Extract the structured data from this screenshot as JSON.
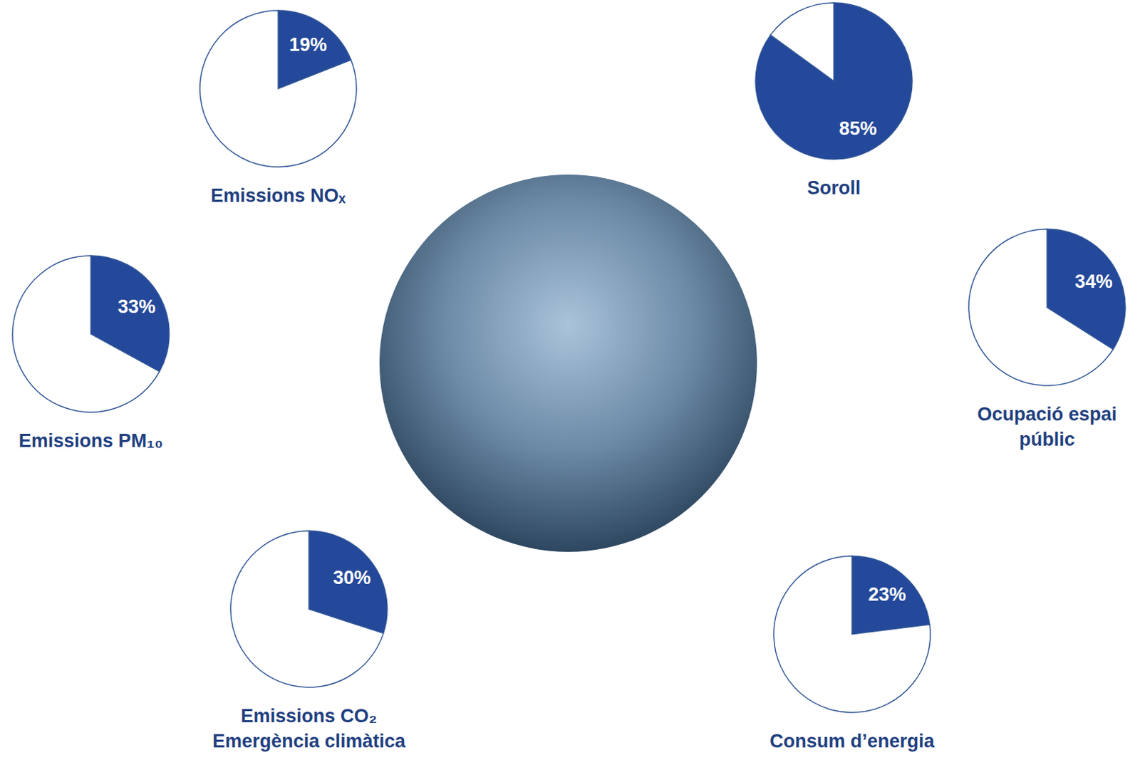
{
  "chart_data": [
    {
      "type": "pie",
      "title": "Emissions NOₓ",
      "values": [
        19,
        81
      ],
      "value_labels": [
        "19%",
        null
      ],
      "colors": [
        "#24489a",
        "#ffffff"
      ],
      "data_labels": true
    },
    {
      "type": "pie",
      "title": "Emissions PM₁₀",
      "values": [
        33,
        67
      ],
      "value_labels": [
        "33%",
        null
      ],
      "colors": [
        "#24489a",
        "#ffffff"
      ],
      "data_labels": true
    },
    {
      "type": "pie",
      "title": "Emissions CO₂",
      "subtitle": "Emergència climàtica",
      "values": [
        30,
        70
      ],
      "value_labels": [
        "30%",
        null
      ],
      "colors": [
        "#24489a",
        "#ffffff"
      ],
      "data_labels": true
    },
    {
      "type": "pie",
      "title": "Soroll",
      "values": [
        85,
        15
      ],
      "value_labels": [
        "85%",
        null
      ],
      "colors": [
        "#24489a",
        "#ffffff"
      ],
      "data_labels": true
    },
    {
      "type": "pie",
      "title": "Ocupació espai públic",
      "values": [
        34,
        66
      ],
      "value_labels": [
        "34%",
        null
      ],
      "colors": [
        "#24489a",
        "#ffffff"
      ],
      "data_labels": true
    },
    {
      "type": "pie",
      "title": "Consum d’energia",
      "values": [
        23,
        77
      ],
      "value_labels": [
        "23%",
        null
      ],
      "colors": [
        "#24489a",
        "#ffffff"
      ],
      "data_labels": true
    }
  ]
}
